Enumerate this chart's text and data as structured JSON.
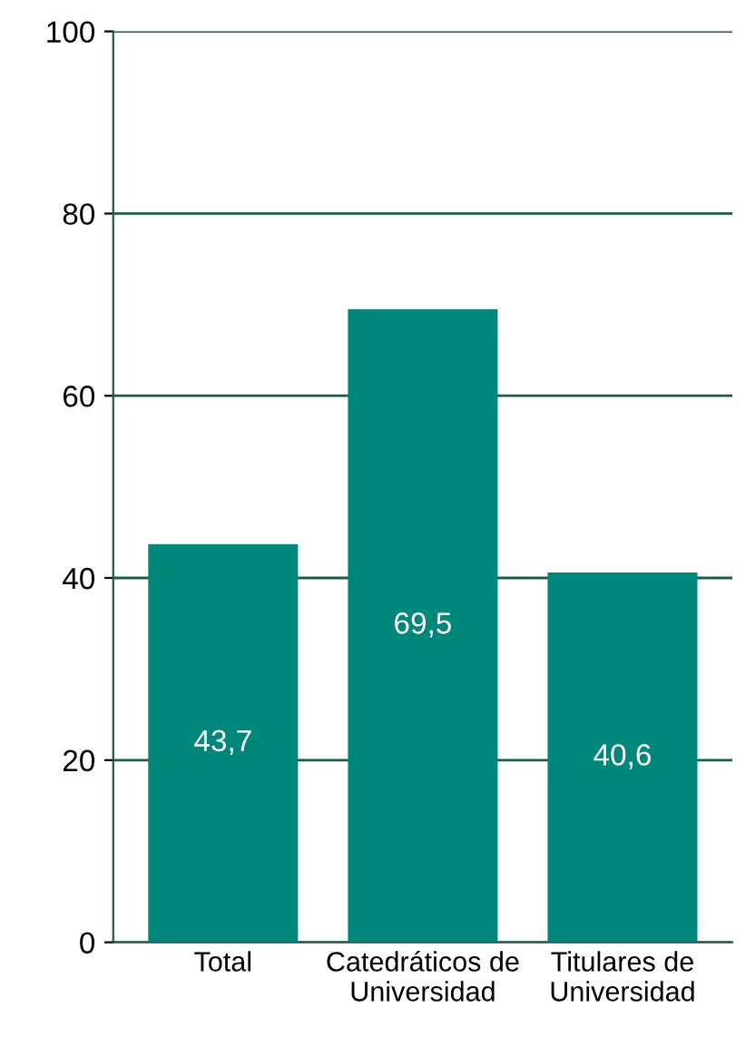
{
  "chart_data": {
    "type": "bar",
    "categories": [
      "Total",
      "Catedráticos de\nUniversidad",
      "Titulares de\nUniversidad"
    ],
    "values": [
      43.7,
      69.5,
      40.6
    ],
    "value_labels": [
      "43,7",
      "69,5",
      "40,6"
    ],
    "color": "#00877b",
    "ylim": [
      0,
      100
    ],
    "yticks": [
      0,
      20,
      40,
      60,
      80,
      100
    ],
    "grid": "y"
  }
}
